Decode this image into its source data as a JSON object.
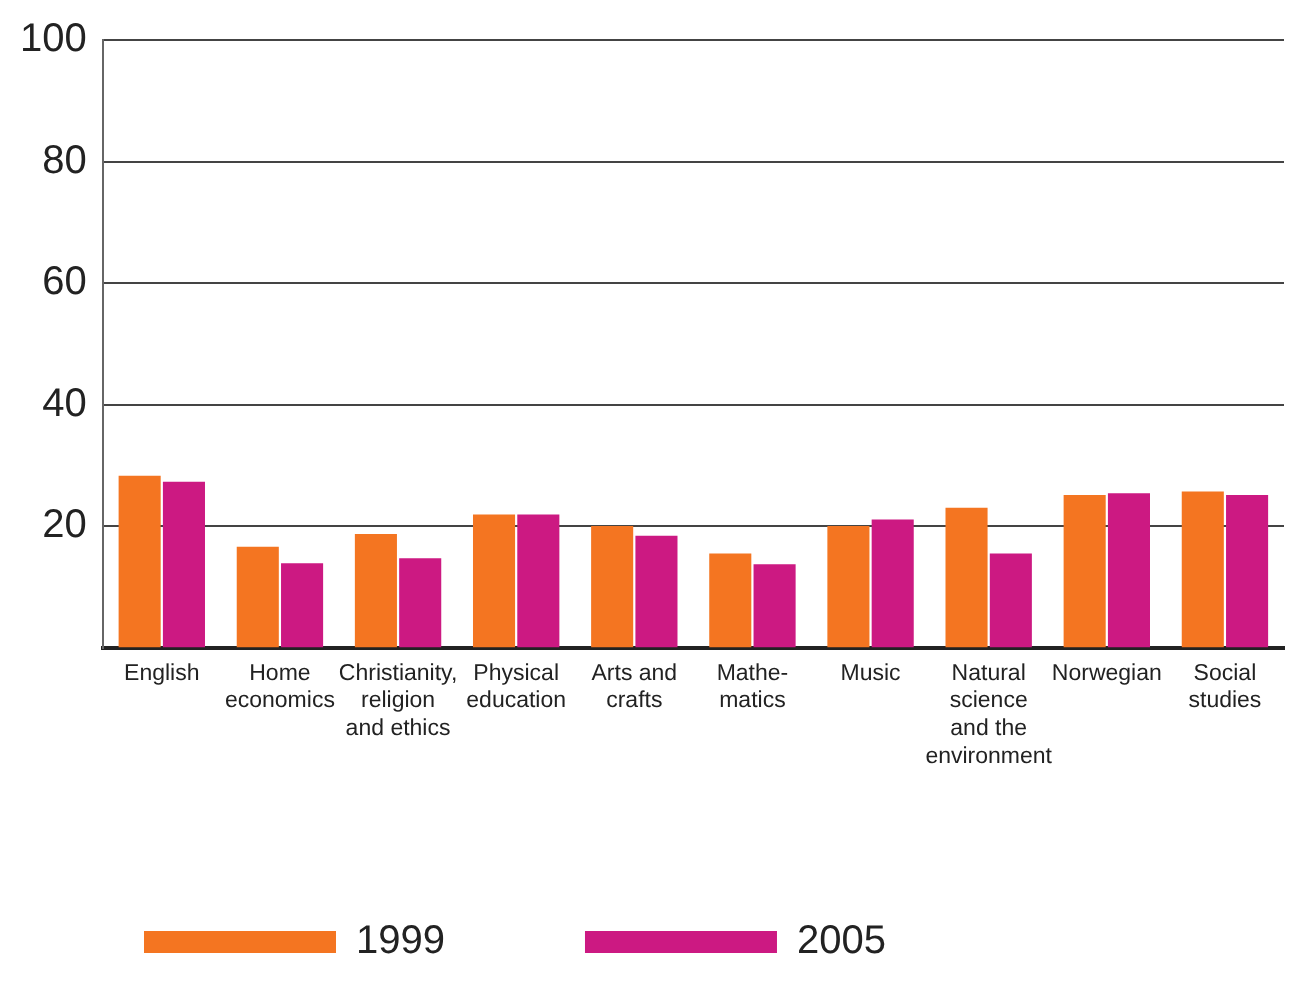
{
  "chart_data": {
    "type": "bar",
    "categories": [
      "English",
      "Home\neconomics",
      "Christianity,\nreligion\nand ethics",
      "Physical\neducation",
      "Arts and\ncrafts",
      "Mathe-\nmatics",
      "Music",
      "Natural\nscience\nand the\nenvironment",
      "Norwegian",
      "Social\nstudies"
    ],
    "series": [
      {
        "name": "1999",
        "color": "#f47521",
        "values": [
          28.3,
          16.6,
          18.7,
          21.9,
          20.0,
          15.5,
          20.0,
          23.0,
          25.1,
          25.7
        ]
      },
      {
        "name": "2005",
        "color": "#cc1982",
        "values": [
          27.3,
          13.9,
          14.7,
          21.9,
          18.4,
          13.7,
          21.1,
          15.5,
          25.4,
          25.1
        ]
      }
    ],
    "ylim": [
      0,
      100
    ],
    "yticks": [
      20,
      40,
      60,
      80,
      100
    ],
    "grid": "y",
    "legend": "bottom"
  }
}
